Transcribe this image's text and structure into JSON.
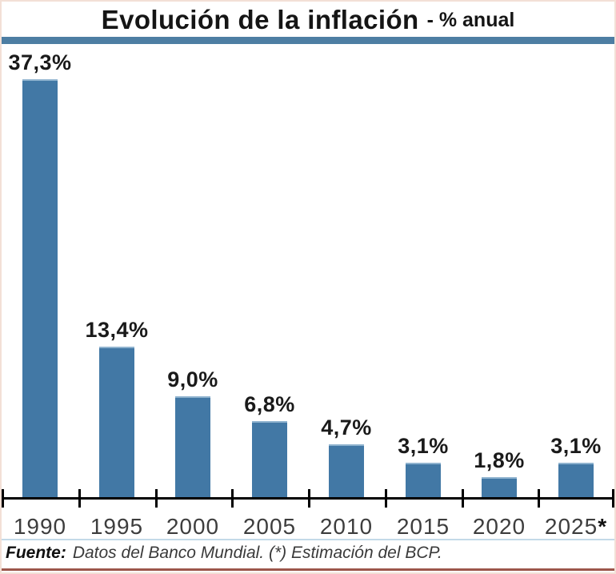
{
  "title": {
    "main": "Evolución de la inflación",
    "suffix": "- % anual"
  },
  "footer": {
    "source_label": "Fuente:",
    "source_text": "Datos del Banco Mundial. (*) Estimación del BCP."
  },
  "colors": {
    "bar": "#4278A5",
    "bar_top_highlight": "#8FB3CF",
    "rule_blue": "#4D7EA3",
    "axis": "#000000",
    "value_label": "#1A1A1A",
    "year_label": "#3D3D3D",
    "frame_border": "#F3E0D6",
    "bottom_line": "#9C564B"
  },
  "chart_data": {
    "type": "bar",
    "title": "Evolución de la inflación - % anual",
    "categories": [
      "1990",
      "1995",
      "2000",
      "2005",
      "2010",
      "2015",
      "2020",
      "2025*"
    ],
    "values": [
      37.3,
      13.4,
      9.0,
      6.8,
      4.7,
      3.1,
      1.8,
      3.1
    ],
    "value_labels": [
      "37,3%",
      "13,4%",
      "9,0%",
      "6,8%",
      "4,7%",
      "3,1%",
      "1,8%",
      "3,1%"
    ],
    "xlabel": "",
    "ylabel": "% anual",
    "ylim": [
      0,
      40
    ],
    "grid": false,
    "legend": false,
    "annotation": "(*) Estimación del BCP"
  }
}
